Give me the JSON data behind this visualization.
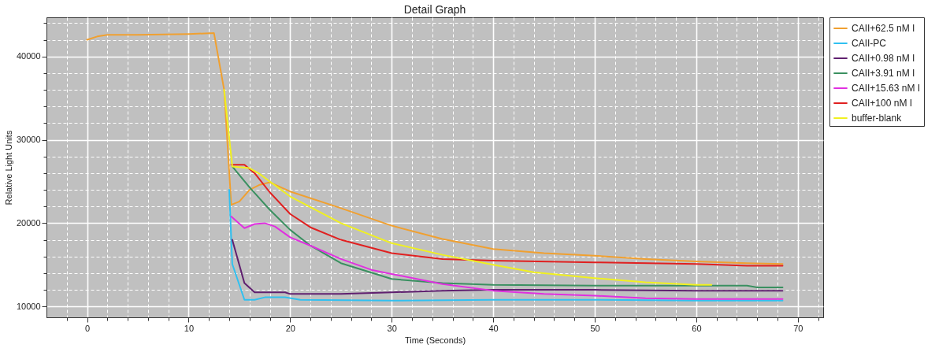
{
  "chart_data": {
    "type": "line",
    "title": "Detail Graph",
    "xlabel": "Time (Seconds)",
    "ylabel": "Relative Light Units",
    "xlim": [
      -4,
      72.5
    ],
    "ylim": [
      8700,
      44700
    ],
    "xticks": [
      {
        "value": -2,
        "label": null
      },
      0,
      {
        "value": 2,
        "label": null
      },
      {
        "value": 4,
        "label": null
      },
      {
        "value": 6,
        "label": null
      },
      {
        "value": 8,
        "label": null
      },
      10,
      {
        "value": 12,
        "label": null
      },
      {
        "value": 14,
        "label": null
      },
      {
        "value": 16,
        "label": null
      },
      {
        "value": 18,
        "label": null
      },
      20,
      {
        "value": 22,
        "label": null
      },
      {
        "value": 24,
        "label": null
      },
      {
        "value": 26,
        "label": null
      },
      {
        "value": 28,
        "label": null
      },
      30,
      {
        "value": 32,
        "label": null
      },
      {
        "value": 34,
        "label": null
      },
      {
        "value": 36,
        "label": null
      },
      {
        "value": 38,
        "label": null
      },
      40,
      {
        "value": 42,
        "label": null
      },
      {
        "value": 44,
        "label": null
      },
      {
        "value": 46,
        "label": null
      },
      {
        "value": 48,
        "label": null
      },
      50,
      {
        "value": 52,
        "label": null
      },
      {
        "value": 54,
        "label": null
      },
      {
        "value": 56,
        "label": null
      },
      {
        "value": 58,
        "label": null
      },
      60,
      {
        "value": 62,
        "label": null
      },
      {
        "value": 64,
        "label": null
      },
      {
        "value": 66,
        "label": null
      },
      {
        "value": 68,
        "label": null
      },
      70,
      {
        "value": 72,
        "label": null
      }
    ],
    "yticks": [
      10000,
      {
        "value": 12000,
        "label": null
      },
      {
        "value": 14000,
        "label": null
      },
      {
        "value": 16000,
        "label": null
      },
      {
        "value": 18000,
        "label": null
      },
      20000,
      {
        "value": 22000,
        "label": null
      },
      {
        "value": 24000,
        "label": null
      },
      {
        "value": 26000,
        "label": null
      },
      {
        "value": 28000,
        "label": null
      },
      30000,
      {
        "value": 32000,
        "label": null
      },
      {
        "value": 34000,
        "label": null
      },
      {
        "value": 36000,
        "label": null
      },
      {
        "value": 38000,
        "label": null
      },
      40000,
      {
        "value": 42000,
        "label": null
      },
      {
        "value": 44000,
        "label": null
      }
    ],
    "grid": true,
    "legend": "right",
    "marker": "none",
    "line_style": "solid",
    "series": [
      {
        "name": "CAII+62.5 nM I",
        "color": "#f0a030",
        "x": [
          0,
          1,
          2,
          5,
          10,
          12.5,
          13.5,
          14.2,
          15,
          16,
          17,
          18,
          20,
          25,
          30,
          35,
          40,
          45,
          50,
          55,
          60,
          65,
          68.5
        ],
        "values": [
          42000,
          42400,
          42600,
          42600,
          42700,
          42800,
          36000,
          22200,
          22600,
          24000,
          24600,
          24900,
          23800,
          21800,
          19700,
          18100,
          16900,
          16400,
          16100,
          15700,
          15400,
          15200,
          15100
        ]
      },
      {
        "name": "CAII-PC",
        "color": "#30c0f0",
        "x": [
          14,
          14.3,
          15.5,
          16.5,
          17.5,
          19.5,
          21,
          30,
          40,
          50,
          60,
          68.5
        ],
        "values": [
          24000,
          15100,
          10800,
          10800,
          11100,
          11100,
          10800,
          10700,
          10800,
          10800,
          10700,
          10700
        ]
      },
      {
        "name": "CAII+0.98 nM I",
        "color": "#602070",
        "x": [
          14.3,
          15.5,
          16.5,
          19.5,
          20,
          25,
          30,
          35,
          40,
          50,
          60,
          68.5
        ],
        "values": [
          18000,
          12800,
          11700,
          11700,
          11500,
          11500,
          11700,
          11900,
          12000,
          12000,
          11900,
          11900
        ]
      },
      {
        "name": "CAII+3.91 nM I",
        "color": "#3a9060",
        "x": [
          14.3,
          16,
          18,
          20,
          22,
          25,
          30,
          35,
          40,
          50,
          60,
          65,
          66,
          68.5
        ],
        "values": [
          26800,
          24300,
          21600,
          19200,
          17300,
          15200,
          13300,
          12800,
          12600,
          12500,
          12500,
          12500,
          12300,
          12300
        ]
      },
      {
        "name": "CAII+15.63 nM I",
        "color": "#e030e0",
        "x": [
          14.2,
          15.5,
          16.5,
          17.5,
          18.5,
          20,
          22,
          25,
          28,
          30,
          35,
          40,
          45,
          50,
          55,
          60,
          68.5
        ],
        "values": [
          20800,
          19400,
          19900,
          20000,
          19600,
          18300,
          17300,
          15700,
          14400,
          13900,
          12700,
          11900,
          11500,
          11300,
          11000,
          10900,
          10900
        ]
      },
      {
        "name": "CAII+100 nM I",
        "color": "#e02020",
        "x": [
          14.2,
          15.5,
          16.5,
          18,
          20,
          22,
          25,
          30,
          35,
          40,
          50,
          60,
          65,
          68.5
        ],
        "values": [
          27000,
          27000,
          26000,
          23700,
          21100,
          19500,
          18000,
          16400,
          15700,
          15500,
          15300,
          15100,
          14900,
          14900
        ]
      },
      {
        "name": "buffer-blank",
        "color": "#f0f020",
        "x": [
          13.5,
          14.3,
          16,
          17,
          18,
          20,
          25,
          30,
          35,
          40,
          44,
          50,
          55,
          60,
          61.5
        ],
        "values": [
          36000,
          26800,
          26600,
          25900,
          25000,
          23200,
          20000,
          17600,
          16200,
          15000,
          14100,
          13400,
          12900,
          12600,
          12600
        ]
      }
    ]
  }
}
